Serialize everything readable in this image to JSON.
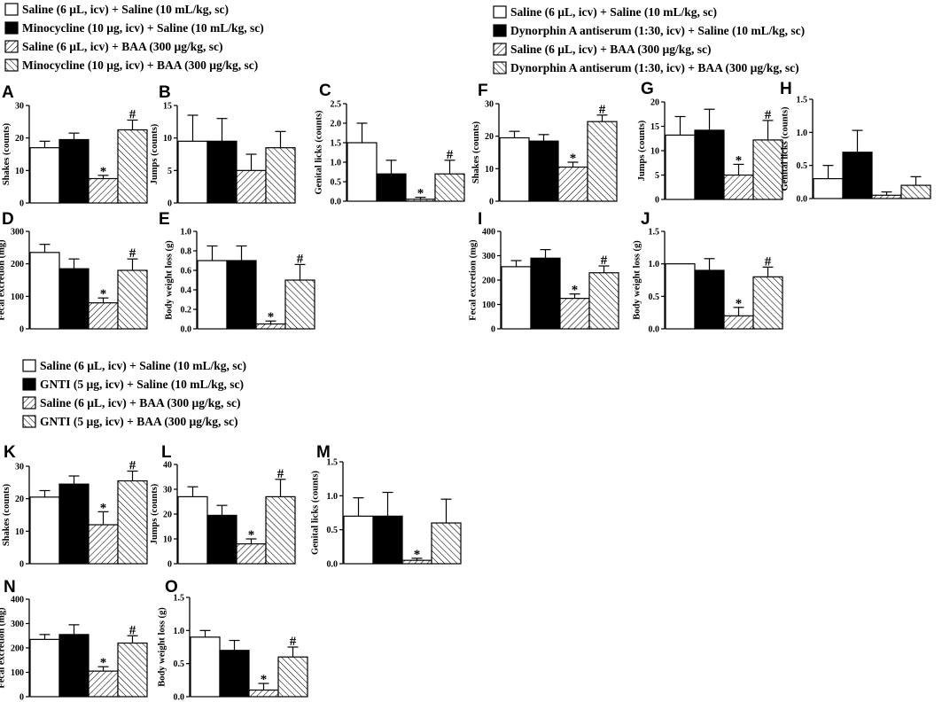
{
  "figure": {
    "legends": [
      {
        "id": "leg1",
        "entries": [
          {
            "label": "Saline (6 µL, icv) + Saline (10 mL/kg, sc)",
            "fill": "white"
          },
          {
            "label": "Minocycline (10 µg, icv) + Saline (10 mL/kg, sc)",
            "fill": "black"
          },
          {
            "label": "Saline (6 µL, icv) + BAA (300 µg/kg, sc)",
            "fill": "hatchR"
          },
          {
            "label": "Minocycline (10 µg, icv) + BAA (300 µg/kg, sc)",
            "fill": "hatchL"
          }
        ]
      },
      {
        "id": "leg2",
        "entries": [
          {
            "label": "Saline (6 µL, icv) + Saline (10 mL/kg, sc)",
            "fill": "white"
          },
          {
            "label": "Dynorphin A antiserum (1:30, icv) + Saline (10 mL/kg, sc)",
            "fill": "black"
          },
          {
            "label": "Saline (6 µL, icv) + BAA (300 µg/kg, sc)",
            "fill": "hatchR"
          },
          {
            "label": "Dynorphin A antiserum (1:30, icv) + BAA (300 µg/kg, sc)",
            "fill": "hatchL"
          }
        ]
      },
      {
        "id": "leg3",
        "entries": [
          {
            "label": "Saline (6 µL, icv) + Saline (10 mL/kg, sc)",
            "fill": "white"
          },
          {
            "label": "GNTI (5 µg, icv) + Saline (10 mL/kg, sc)",
            "fill": "black"
          },
          {
            "label": "Saline (6 µL, icv) + BAA (300 µg/kg, sc)",
            "fill": "hatchR"
          },
          {
            "label": "GNTI (5 µg, icv) + BAA (300 µg/kg, sc)",
            "fill": "hatchL"
          }
        ]
      }
    ]
  },
  "chart_data": [
    {
      "panel": "A",
      "type": "bar",
      "ylabel": "Shakes (counts)",
      "ylim": [
        0,
        30
      ],
      "ticks": [
        "0",
        "10",
        "20",
        "30"
      ],
      "values": [
        17,
        19.5,
        7.5,
        22.5
      ],
      "errors": [
        2,
        2,
        1,
        3
      ],
      "annotations": [
        "",
        "",
        "*",
        "#"
      ]
    },
    {
      "panel": "B",
      "type": "bar",
      "ylabel": "Jumps (counts)",
      "ylim": [
        0,
        15
      ],
      "ticks": [
        "0",
        "5",
        "10",
        "15"
      ],
      "values": [
        9.5,
        9.5,
        5,
        8.5
      ],
      "errors": [
        4,
        3.5,
        2.5,
        2.5
      ],
      "annotations": [
        "",
        "",
        "",
        ""
      ]
    },
    {
      "panel": "C",
      "type": "bar",
      "ylabel": "Genital licks (counts)",
      "ylim": [
        0,
        2.5
      ],
      "ticks": [
        "0.0",
        "0.5",
        "1.0",
        "1.5",
        "2.0",
        "2.5"
      ],
      "values": [
        1.5,
        0.7,
        0.05,
        0.7
      ],
      "errors": [
        0.5,
        0.35,
        0.05,
        0.35
      ],
      "annotations": [
        "",
        "",
        "*",
        "#"
      ]
    },
    {
      "panel": "F",
      "type": "bar",
      "ylabel": "Shakes (counts)",
      "ylim": [
        0,
        30
      ],
      "ticks": [
        "0",
        "10",
        "20",
        "30"
      ],
      "values": [
        19.5,
        18.5,
        10.5,
        24.5
      ],
      "errors": [
        2,
        2,
        1.5,
        2
      ],
      "annotations": [
        "",
        "",
        "*",
        "#"
      ]
    },
    {
      "panel": "G",
      "type": "bar",
      "ylabel": "Jumps (counts)",
      "ylim": [
        0,
        20
      ],
      "ticks": [
        "0",
        "5",
        "10",
        "15",
        "20"
      ],
      "values": [
        13.2,
        14.2,
        5,
        12.2
      ],
      "errors": [
        3.8,
        4.3,
        2.2,
        4
      ],
      "annotations": [
        "",
        "",
        "*",
        "#"
      ]
    },
    {
      "panel": "H",
      "type": "bar",
      "ylabel": "Genital licks (counts)",
      "ylim": [
        0,
        1.5
      ],
      "ticks": [
        "0.0",
        "0.5",
        "1.0",
        "1.5"
      ],
      "values": [
        0.3,
        0.7,
        0.05,
        0.2
      ],
      "errors": [
        0.2,
        0.33,
        0.05,
        0.13
      ],
      "annotations": [
        "",
        "",
        "",
        ""
      ]
    },
    {
      "panel": "D",
      "type": "bar",
      "ylabel": "Fecal excretion (mg)",
      "ylim": [
        0,
        300
      ],
      "ticks": [
        "0",
        "100",
        "200",
        "300"
      ],
      "values": [
        235,
        185,
        80,
        180
      ],
      "errors": [
        25,
        30,
        15,
        35
      ],
      "annotations": [
        "",
        "",
        "*",
        "#"
      ]
    },
    {
      "panel": "E",
      "type": "bar",
      "ylabel": "Body weight loss (g)",
      "ylim": [
        0,
        1.0
      ],
      "ticks": [
        "0.0",
        "0.2",
        "0.4",
        "0.6",
        "0.8",
        "1.0"
      ],
      "values": [
        0.7,
        0.7,
        0.05,
        0.5
      ],
      "errors": [
        0.15,
        0.15,
        0.03,
        0.16
      ],
      "annotations": [
        "",
        "",
        "*",
        "#"
      ]
    },
    {
      "panel": "I",
      "type": "bar",
      "ylabel": "Fecal excretion (mg)",
      "ylim": [
        0,
        400
      ],
      "ticks": [
        "0",
        "100",
        "200",
        "300",
        "400"
      ],
      "values": [
        255,
        290,
        125,
        230
      ],
      "errors": [
        25,
        35,
        18,
        28
      ],
      "annotations": [
        "",
        "",
        "*",
        "#"
      ]
    },
    {
      "panel": "J",
      "type": "bar",
      "ylabel": "Body weight loss (g)",
      "ylim": [
        0,
        1.5
      ],
      "ticks": [
        "0.0",
        "0.5",
        "1.0",
        "1.5"
      ],
      "values": [
        1.0,
        0.9,
        0.2,
        0.8
      ],
      "errors": [
        0,
        0.18,
        0.13,
        0.15
      ],
      "annotations": [
        "",
        "",
        "*",
        "#"
      ]
    },
    {
      "panel": "K",
      "type": "bar",
      "ylabel": "Shakes (counts)",
      "ylim": [
        0,
        30
      ],
      "ticks": [
        "0",
        "10",
        "20",
        "30"
      ],
      "values": [
        20.5,
        24.5,
        12,
        25.5
      ],
      "errors": [
        2,
        2.5,
        4,
        3
      ],
      "annotations": [
        "",
        "",
        "*",
        "#"
      ]
    },
    {
      "panel": "L",
      "type": "bar",
      "ylabel": "Jumps (counts)",
      "ylim": [
        0,
        40
      ],
      "ticks": [
        "0",
        "10",
        "20",
        "30",
        "40"
      ],
      "values": [
        27,
        19.5,
        8,
        27
      ],
      "errors": [
        4,
        4,
        2,
        7
      ],
      "annotations": [
        "",
        "",
        "*",
        "#"
      ]
    },
    {
      "panel": "M",
      "type": "bar",
      "ylabel": "Genital licks (counts)",
      "ylim": [
        0,
        1.5
      ],
      "ticks": [
        "0.0",
        "0.5",
        "1.0",
        "1.5"
      ],
      "values": [
        0.7,
        0.7,
        0.05,
        0.6
      ],
      "errors": [
        0.27,
        0.35,
        0.03,
        0.35
      ],
      "annotations": [
        "",
        "",
        "*",
        ""
      ]
    },
    {
      "panel": "N",
      "type": "bar",
      "ylabel": "Fecal excretion (mg)",
      "ylim": [
        0,
        400
      ],
      "ticks": [
        "0",
        "100",
        "200",
        "300",
        "400"
      ],
      "values": [
        235,
        255,
        105,
        220
      ],
      "errors": [
        20,
        40,
        18,
        30
      ],
      "annotations": [
        "",
        "",
        "*",
        "#"
      ]
    },
    {
      "panel": "O",
      "type": "bar",
      "ylabel": "Body weight loss (g)",
      "ylim": [
        0,
        1.5
      ],
      "ticks": [
        "0.0",
        "0.5",
        "1.0",
        "1.5"
      ],
      "values": [
        0.9,
        0.7,
        0.1,
        0.6
      ],
      "errors": [
        0.1,
        0.15,
        0.1,
        0.15
      ],
      "annotations": [
        "",
        "",
        "*",
        "#"
      ]
    }
  ]
}
